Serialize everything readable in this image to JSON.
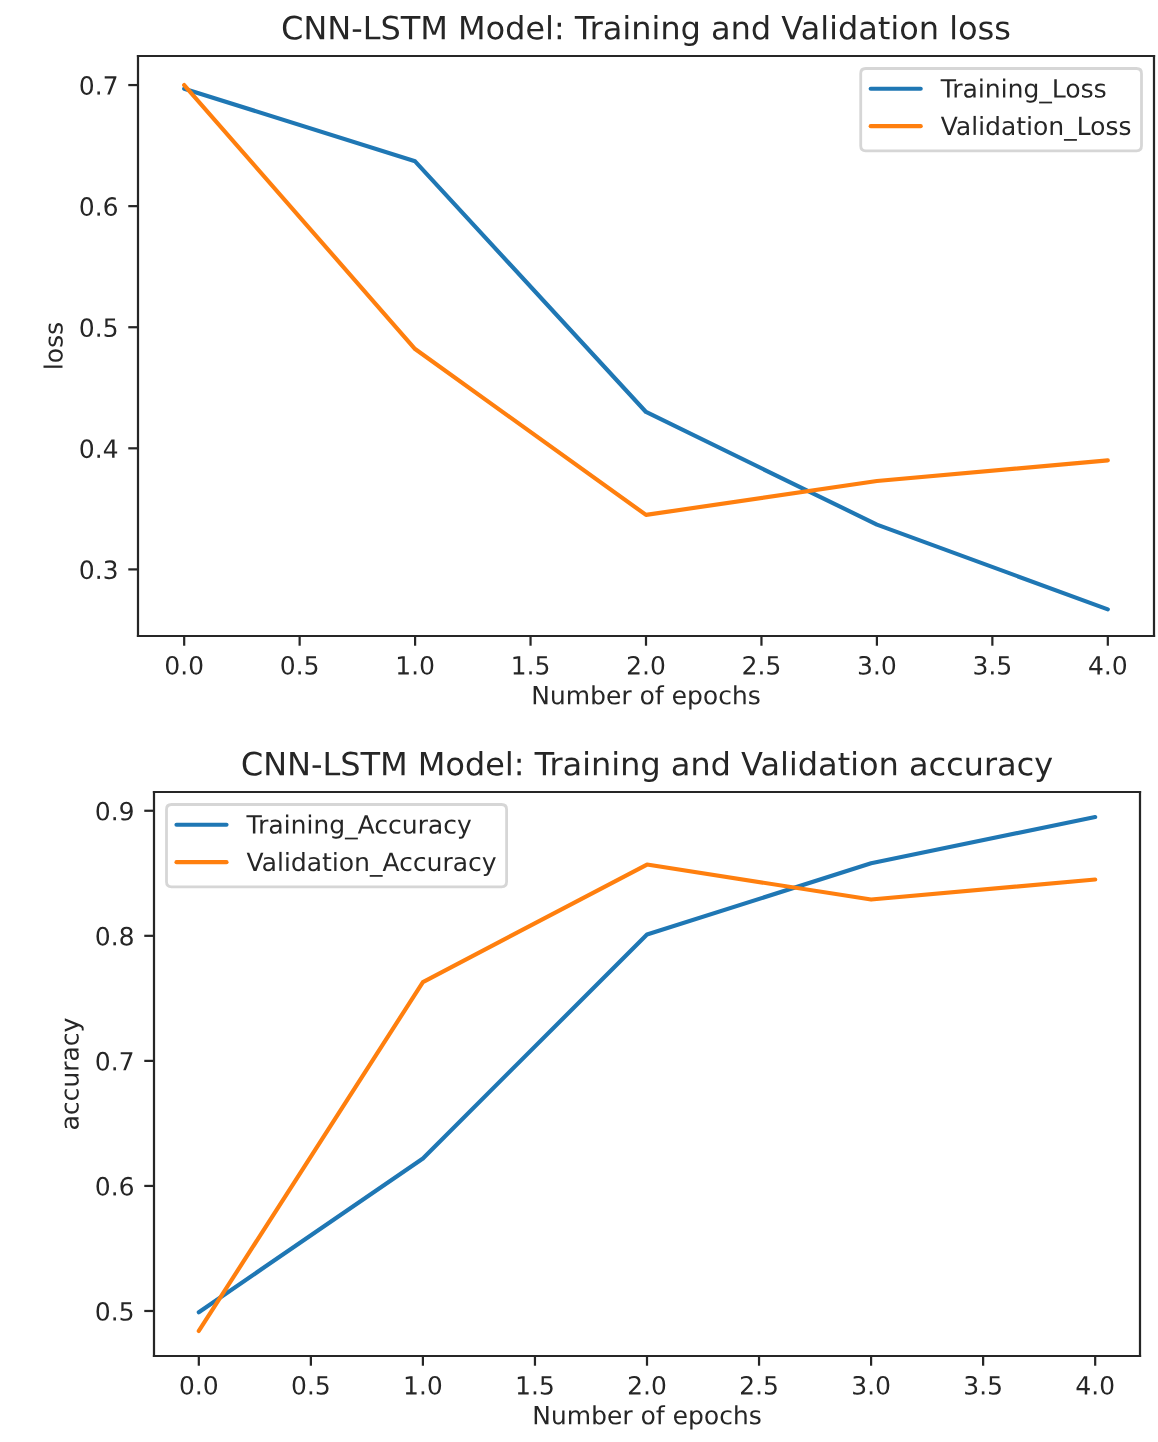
{
  "chart_data": [
    {
      "type": "line",
      "title": "CNN-LSTM Model: Training and Validation loss",
      "xlabel": "Number of epochs",
      "ylabel": "loss",
      "x": [
        0,
        1,
        2,
        3,
        4
      ],
      "series": [
        {
          "name": "Training_Loss",
          "color": "#1f77b4",
          "values": [
            0.697,
            0.637,
            0.43,
            0.337,
            0.267
          ]
        },
        {
          "name": "Validation_Loss",
          "color": "#ff7f0e",
          "values": [
            0.7,
            0.482,
            0.345,
            0.373,
            0.39
          ]
        }
      ],
      "xlim": [
        -0.2,
        4.2
      ],
      "xticks": [
        {
          "value": 0,
          "label": "0.0"
        },
        0.5,
        {
          "value": 1,
          "label": "1.0"
        },
        1.5,
        {
          "value": 2,
          "label": "2.0"
        },
        2.5,
        {
          "value": 3,
          "label": "3.0"
        },
        3.5,
        {
          "value": 4,
          "label": "4.0"
        }
      ],
      "ylim": [
        0.245,
        0.724
      ],
      "yticks": [
        0.3,
        0.4,
        0.5,
        0.6,
        0.7
      ],
      "legend": "top right",
      "grid": false,
      "marker": "none",
      "line_style": "solid"
    },
    {
      "type": "line",
      "title": "CNN-LSTM Model: Training and Validation accuracy",
      "xlabel": "Number of epochs",
      "ylabel": "accuracy",
      "x": [
        0,
        1,
        2,
        3,
        4
      ],
      "series": [
        {
          "name": "Training_Accuracy",
          "color": "#1f77b4",
          "values": [
            0.499,
            0.622,
            0.801,
            0.858,
            0.895
          ]
        },
        {
          "name": "Validation_Accuracy",
          "color": "#ff7f0e",
          "values": [
            0.484,
            0.763,
            0.857,
            0.829,
            0.845
          ]
        }
      ],
      "xlim": [
        -0.2,
        4.2
      ],
      "xticks": [
        {
          "value": 0,
          "label": "0.0"
        },
        0.5,
        {
          "value": 1,
          "label": "1.0"
        },
        1.5,
        {
          "value": 2,
          "label": "2.0"
        },
        2.5,
        {
          "value": 3,
          "label": "3.0"
        },
        3.5,
        {
          "value": 4,
          "label": "4.0"
        }
      ],
      "ylim": [
        0.464,
        0.915
      ],
      "yticks": [
        0.5,
        0.6,
        0.7,
        0.8,
        0.9
      ],
      "legend": "top left",
      "grid": false,
      "marker": "none",
      "line_style": "solid"
    }
  ]
}
